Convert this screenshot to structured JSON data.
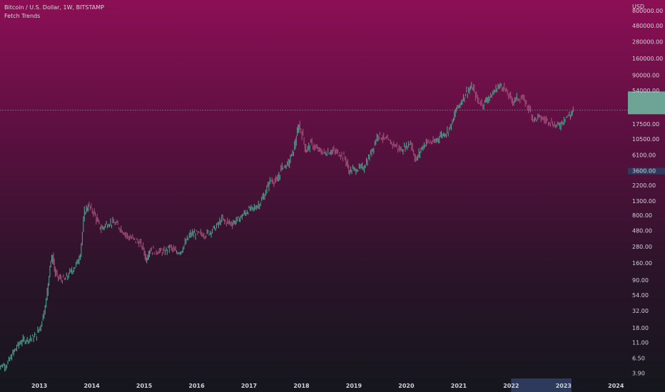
{
  "header": {
    "symbol_line": "Bitcoin / U.S. Dollar, 1W, BITSTAMP",
    "indicator": "Fetch Trends"
  },
  "colors": {
    "bull": "#4f9d8a",
    "bear": "#a1517a",
    "price_line": "#b7c4cc",
    "price_label_bg": "#6fb59d",
    "axis_highlight": "#2d3a5c"
  },
  "chart_data": {
    "type": "line",
    "yscale": "log",
    "currency": "USD",
    "ylim": [
      3.5,
      900000
    ],
    "xlim": [
      2012.25,
      2024.2
    ],
    "y_ticks": [
      {
        "v": 800000,
        "label": "800000.00"
      },
      {
        "v": 480000,
        "label": "480000.00"
      },
      {
        "v": 280000,
        "label": "280000.00"
      },
      {
        "v": 160000,
        "label": "160000.00"
      },
      {
        "v": 90000,
        "label": "90000.00"
      },
      {
        "v": 54000,
        "label": "54000.00"
      },
      {
        "v": 17500,
        "label": "17500.00"
      },
      {
        "v": 10500,
        "label": "10500.00"
      },
      {
        "v": 6100,
        "label": "6100.00"
      },
      {
        "v": 3600,
        "label": "3600.00"
      },
      {
        "v": 2200,
        "label": "2200.00"
      },
      {
        "v": 1300,
        "label": "1300.00"
      },
      {
        "v": 800,
        "label": "800.00"
      },
      {
        "v": 480,
        "label": "480.00"
      },
      {
        "v": 280,
        "label": "280.00"
      },
      {
        "v": 160,
        "label": "160.00"
      },
      {
        "v": 90,
        "label": "90.00"
      },
      {
        "v": 54,
        "label": "54.00"
      },
      {
        "v": 32,
        "label": "32.00"
      },
      {
        "v": 18,
        "label": "18.00"
      },
      {
        "v": 11,
        "label": "11.00"
      },
      {
        "v": 6.5,
        "label": "6.50"
      },
      {
        "v": 3.9,
        "label": "3.90"
      }
    ],
    "x_ticks": [
      {
        "v": 2013,
        "label": "2013"
      },
      {
        "v": 2014,
        "label": "2014"
      },
      {
        "v": 2015,
        "label": "2015"
      },
      {
        "v": 2016,
        "label": "2016"
      },
      {
        "v": 2017,
        "label": "2017"
      },
      {
        "v": 2018,
        "label": "2018"
      },
      {
        "v": 2019,
        "label": "2019"
      },
      {
        "v": 2020,
        "label": "2020"
      },
      {
        "v": 2021,
        "label": "2021"
      },
      {
        "v": 2022,
        "label": "2022"
      },
      {
        "v": 2023,
        "label": "2023"
      },
      {
        "v": 2024,
        "label": "2024"
      }
    ],
    "current_price": 28000,
    "series": [
      {
        "points": [
          [
            2012.2,
            4.8
          ],
          [
            2012.4,
            5.2
          ],
          [
            2012.55,
            8.5
          ],
          [
            2012.65,
            11
          ],
          [
            2012.75,
            12
          ],
          [
            2012.85,
            12.5
          ],
          [
            2012.95,
            13.5
          ],
          [
            2013.05,
            20
          ],
          [
            2013.15,
            45
          ],
          [
            2013.22,
            150
          ],
          [
            2013.27,
            200
          ],
          [
            2013.32,
            110
          ],
          [
            2013.4,
            95
          ],
          [
            2013.5,
            90
          ],
          [
            2013.6,
            115
          ],
          [
            2013.72,
            150
          ],
          [
            2013.8,
            220
          ],
          [
            2013.88,
            900
          ],
          [
            2013.95,
            1100
          ],
          [
            2014.05,
            900
          ],
          [
            2014.12,
            650
          ],
          [
            2014.2,
            500
          ],
          [
            2014.3,
            600
          ],
          [
            2014.42,
            620
          ],
          [
            2014.5,
            580
          ],
          [
            2014.6,
            480
          ],
          [
            2014.7,
            390
          ],
          [
            2014.8,
            360
          ],
          [
            2014.9,
            330
          ],
          [
            2015.0,
            260
          ],
          [
            2015.05,
            180
          ],
          [
            2015.12,
            250
          ],
          [
            2015.25,
            240
          ],
          [
            2015.4,
            230
          ],
          [
            2015.5,
            275
          ],
          [
            2015.62,
            230
          ],
          [
            2015.72,
            240
          ],
          [
            2015.82,
            330
          ],
          [
            2015.9,
            420
          ],
          [
            2016.0,
            430
          ],
          [
            2016.2,
            420
          ],
          [
            2016.4,
            550
          ],
          [
            2016.5,
            700
          ],
          [
            2016.55,
            650
          ],
          [
            2016.7,
            610
          ],
          [
            2016.85,
            740
          ],
          [
            2017.0,
            950
          ],
          [
            2017.1,
            1000
          ],
          [
            2017.2,
            1150
          ],
          [
            2017.3,
            1500
          ],
          [
            2017.42,
            2600
          ],
          [
            2017.55,
            2500
          ],
          [
            2017.65,
            4200
          ],
          [
            2017.75,
            4300
          ],
          [
            2017.85,
            6500
          ],
          [
            2017.92,
            11000
          ],
          [
            2017.97,
            17000
          ],
          [
            2018.05,
            11000
          ],
          [
            2018.1,
            7000
          ],
          [
            2018.2,
            9000
          ],
          [
            2018.3,
            7500
          ],
          [
            2018.45,
            6500
          ],
          [
            2018.6,
            7000
          ],
          [
            2018.75,
            6400
          ],
          [
            2018.85,
            5500
          ],
          [
            2018.92,
            3600
          ],
          [
            2019.0,
            3700
          ],
          [
            2019.2,
            4000
          ],
          [
            2019.3,
            5500
          ],
          [
            2019.4,
            8500
          ],
          [
            2019.48,
            12500
          ],
          [
            2019.55,
            11000
          ],
          [
            2019.7,
            9500
          ],
          [
            2019.8,
            8500
          ],
          [
            2019.9,
            7200
          ],
          [
            2020.0,
            8000
          ],
          [
            2020.1,
            9500
          ],
          [
            2020.2,
            5000
          ],
          [
            2020.3,
            7500
          ],
          [
            2020.4,
            9500
          ],
          [
            2020.55,
            9300
          ],
          [
            2020.65,
            11500
          ],
          [
            2020.8,
            13500
          ],
          [
            2020.9,
            18500
          ],
          [
            2020.97,
            29000
          ],
          [
            2021.05,
            35000
          ],
          [
            2021.15,
            50000
          ],
          [
            2021.28,
            60000
          ],
          [
            2021.38,
            38000
          ],
          [
            2021.48,
            34000
          ],
          [
            2021.55,
            40000
          ],
          [
            2021.65,
            46000
          ],
          [
            2021.75,
            60000
          ],
          [
            2021.85,
            64000
          ],
          [
            2021.95,
            47000
          ],
          [
            2022.05,
            38000
          ],
          [
            2022.15,
            42000
          ],
          [
            2022.25,
            40000
          ],
          [
            2022.35,
            30000
          ],
          [
            2022.45,
            20000
          ],
          [
            2022.55,
            22000
          ],
          [
            2022.65,
            20000
          ],
          [
            2022.75,
            19500
          ],
          [
            2022.85,
            16500
          ],
          [
            2022.95,
            16800
          ],
          [
            2023.05,
            22000
          ],
          [
            2023.15,
            23500
          ],
          [
            2023.2,
            28000
          ]
        ]
      }
    ]
  }
}
